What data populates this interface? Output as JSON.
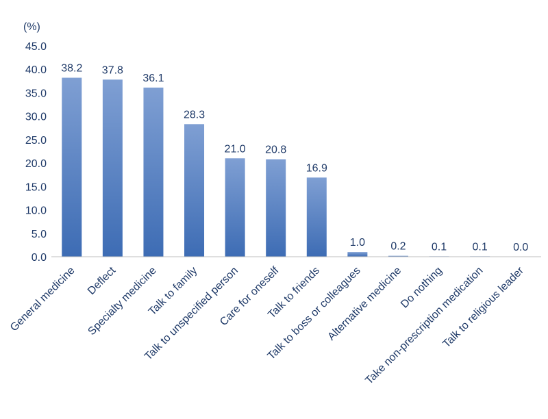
{
  "chart_data": {
    "type": "bar",
    "unit_label": "(%)",
    "categories": [
      "General medicine",
      "Deflect",
      "Specialty medicine",
      "Talk to family",
      "Talk to unspecified person",
      "Care for oneself",
      "Talk to friends",
      "Talk to boss or colleagues",
      "Alternative medicine",
      "Do nothing",
      "Take non-prescription medication",
      "Talk to religious leader"
    ],
    "values": [
      38.2,
      37.8,
      36.1,
      28.3,
      21.0,
      20.8,
      16.9,
      1.0,
      0.2,
      0.1,
      0.1,
      0.0
    ],
    "value_labels": [
      "38.2",
      "37.8",
      "36.1",
      "28.3",
      "21.0",
      "20.8",
      "16.9",
      "1.0",
      "0.2",
      "0.1",
      "0.1",
      "0.0"
    ],
    "ylim": [
      0,
      45
    ],
    "yticks": [
      0,
      5,
      10,
      15,
      20,
      25,
      30,
      35,
      40,
      45
    ],
    "ytick_labels": [
      "0.0",
      "5.0",
      "10.0",
      "15.0",
      "20.0",
      "25.0",
      "30.0",
      "35.0",
      "40.0",
      "45.0"
    ],
    "grid": false,
    "legend": "none",
    "colors": {
      "bar_top": "#7f9fd3",
      "bar_bottom": "#3d6cb4",
      "axis": "#bfbfbf",
      "text": "#1f3a68"
    }
  }
}
